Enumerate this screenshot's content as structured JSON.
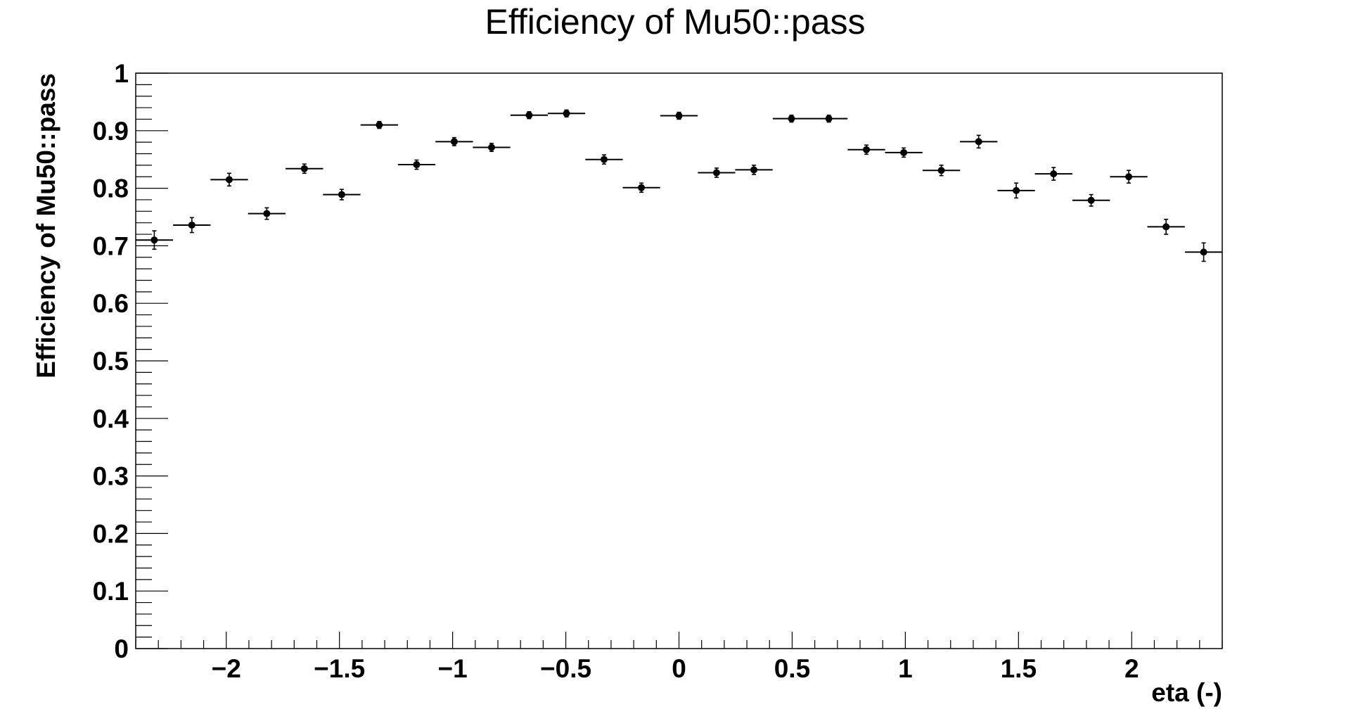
{
  "chart_data": {
    "type": "scatter",
    "title": "Efficiency of Mu50::pass",
    "xlabel": "eta (-)",
    "ylabel": "Efficiency of Mu50::pass",
    "xlim": [
      -2.4,
      2.4
    ],
    "ylim": [
      0,
      1
    ],
    "x_ticks": [
      -2,
      -1.5,
      -1,
      -0.5,
      0,
      0.5,
      1,
      1.5,
      2
    ],
    "x_tick_labels": [
      "−2",
      "−1.5",
      "−1",
      "−0.5",
      "0",
      "0.5",
      "1",
      "1.5",
      "2"
    ],
    "y_ticks": [
      0,
      0.1,
      0.2,
      0.3,
      0.4,
      0.5,
      0.6,
      0.7,
      0.8,
      0.9,
      1
    ],
    "y_tick_labels": [
      "0",
      "0.1",
      "0.2",
      "0.3",
      "0.4",
      "0.5",
      "0.6",
      "0.7",
      "0.8",
      "0.9",
      "1"
    ],
    "grid": false,
    "legend": "none",
    "series": [
      {
        "x": [
          -2.318,
          -2.152,
          -1.987,
          -1.821,
          -1.655,
          -1.49,
          -1.324,
          -1.159,
          -0.993,
          -0.828,
          -0.662,
          -0.497,
          -0.331,
          -0.166,
          0.0,
          0.166,
          0.331,
          0.497,
          0.662,
          0.828,
          0.993,
          1.159,
          1.324,
          1.49,
          1.655,
          1.821,
          1.987,
          2.152,
          2.318
        ],
        "x_err": 0.0828,
        "y": [
          0.71,
          0.736,
          0.815,
          0.756,
          0.834,
          0.789,
          0.91,
          0.841,
          0.881,
          0.871,
          0.927,
          0.93,
          0.85,
          0.801,
          0.926,
          0.827,
          0.832,
          0.921,
          0.921,
          0.867,
          0.862,
          0.831,
          0.881,
          0.796,
          0.825,
          0.779,
          0.82,
          0.733,
          0.689
        ],
        "y_err": [
          0.016,
          0.013,
          0.011,
          0.01,
          0.008,
          0.009,
          0.006,
          0.008,
          0.007,
          0.007,
          0.006,
          0.006,
          0.008,
          0.008,
          0.006,
          0.008,
          0.008,
          0.006,
          0.006,
          0.008,
          0.008,
          0.009,
          0.011,
          0.013,
          0.011,
          0.01,
          0.011,
          0.013,
          0.016
        ]
      }
    ]
  }
}
